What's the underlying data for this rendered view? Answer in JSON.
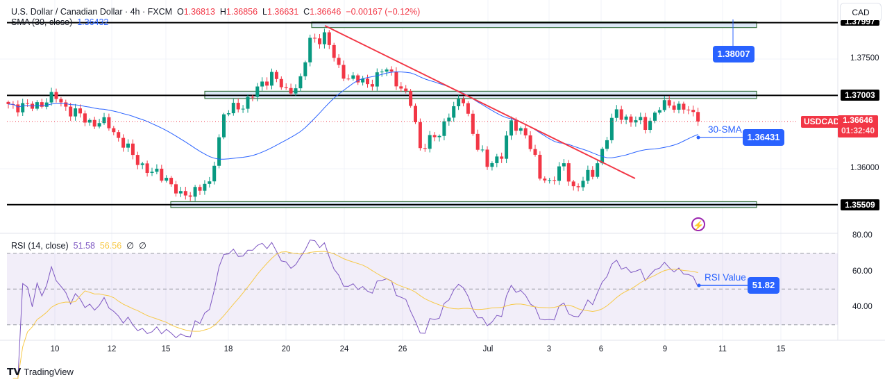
{
  "header": {
    "symbol_name": "U.S. Dollar / Canadian Dollar · 4h · FXCM",
    "open_label": "O",
    "open": "1.36813",
    "high_label": "H",
    "high": "1.36856",
    "low_label": "L",
    "low": "1.36631",
    "close_label": "C",
    "close": "1.36646",
    "change": "−0.00167 (−0.12%)"
  },
  "sma_legend": {
    "label": "SMA (30, close)",
    "value": "1.36432",
    "color": "#2962ff"
  },
  "rsi_legend": {
    "label": "RSI (14, close)",
    "value1": "51.58",
    "value2": "56.56",
    "extra1": "∅",
    "extra2": "∅",
    "color_rsi": "#7e57c2",
    "color_ma": "#f7c948"
  },
  "currency_button": "CAD",
  "price_axis": {
    "ticks": [
      "1.37500",
      "1.36000"
    ],
    "levels": [
      "1.37997",
      "1.37003",
      "1.35509"
    ],
    "symbol_badge": "USDCAD",
    "last_price": "1.36646",
    "countdown": "01:32:40"
  },
  "rsi_axis": {
    "ticks": [
      "80.00",
      "60.00",
      "40.00"
    ]
  },
  "time_axis": [
    "10",
    "12",
    "15",
    "18",
    "20",
    "24",
    "26",
    "Jul",
    "3",
    "6",
    "9",
    "11",
    "15"
  ],
  "annotations": {
    "top_callout": "1.38007",
    "sma_label": "30-SMA",
    "sma_callout": "1.36431",
    "rsi_label": "RSI Value",
    "rsi_callout": "51.82"
  },
  "footer": {
    "logo_text": "TradingView"
  },
  "colors": {
    "up": "#089981",
    "down": "#f23645",
    "trendline": "#f23645",
    "zone_fill": "#dbe8f5",
    "zone_border": "#1b5e20"
  },
  "chart_data": {
    "type": "candlestick",
    "timeframe": "4h",
    "ylim": [
      1.353,
      1.381
    ],
    "close_keypoints": [
      [
        0,
        1.36883
      ],
      [
        4,
        1.36835
      ],
      [
        10,
        1.36978
      ],
      [
        13,
        1.36788
      ],
      [
        17,
        1.36646
      ],
      [
        21,
        1.36598
      ],
      [
        26,
        1.36171
      ],
      [
        30,
        1.35933
      ],
      [
        33,
        1.35886
      ],
      [
        36,
        1.35601
      ],
      [
        39,
        1.35725
      ],
      [
        42,
        1.35763
      ],
      [
        43,
        1.36123
      ],
      [
        45,
        1.3674
      ],
      [
        49,
        1.36883
      ],
      [
        52,
        1.37073
      ],
      [
        55,
        1.3731
      ],
      [
        58,
        1.37025
      ],
      [
        61,
        1.37215
      ],
      [
        63,
        1.37737
      ],
      [
        66,
        1.37832
      ],
      [
        69,
        1.37358
      ],
      [
        72,
        1.37215
      ],
      [
        75,
        1.37168
      ],
      [
        79,
        1.37358
      ],
      [
        81,
        1.37215
      ],
      [
        84,
        1.36883
      ],
      [
        86,
        1.36313
      ],
      [
        90,
        1.36456
      ],
      [
        92,
        1.36788
      ],
      [
        95,
        1.3693
      ],
      [
        98,
        1.36313
      ],
      [
        100,
        1.36028
      ],
      [
        103,
        1.36218
      ],
      [
        105,
        1.36598
      ],
      [
        108,
        1.36503
      ],
      [
        111,
        1.35886
      ],
      [
        113,
        1.35839
      ],
      [
        116,
        1.36028
      ],
      [
        118,
        1.35744
      ],
      [
        122,
        1.35933
      ],
      [
        124,
        1.36266
      ],
      [
        127,
        1.36788
      ],
      [
        129,
        1.36693
      ],
      [
        133,
        1.36598
      ],
      [
        136,
        1.36835
      ],
      [
        139,
        1.36883
      ],
      [
        141,
        1.36835
      ],
      [
        144,
        1.36646
      ]
    ],
    "horizontal_levels": [
      1.37997,
      1.37003,
      1.35509
    ],
    "sma_period": 30,
    "rsi_period": 14,
    "rsi_levels": [
      70,
      50,
      30
    ]
  }
}
